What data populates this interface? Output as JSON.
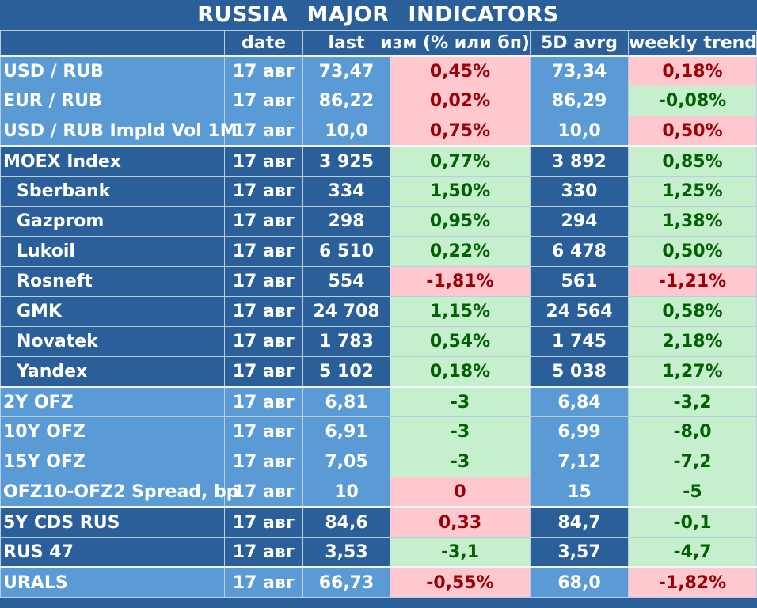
{
  "title": "RUSSIA   MAJOR   INDICATORS",
  "columns": [
    "",
    "date",
    "last",
    "изм (% или бп)",
    "5D avrg",
    "weekly trend"
  ],
  "rows": [
    {
      "name": "USD / RUB",
      "date": "17 авг",
      "last": "73,47",
      "chg": "0,45%",
      "chg_state": "neg",
      "avg": "73,34",
      "trend": "0,18%",
      "trend_state": "neg"
    },
    {
      "name": "EUR / RUB",
      "date": "17 авг",
      "last": "86,22",
      "chg": "0,02%",
      "chg_state": "neg",
      "avg": "86,29",
      "trend": "-0,08%",
      "trend_state": "pos"
    },
    {
      "name": "USD / RUB Impld Vol 1M",
      "date": "17 авг",
      "last": "10,0",
      "chg": "0,75%",
      "chg_state": "neg",
      "avg": "10,0",
      "trend": "0,50%",
      "trend_state": "neg"
    },
    {
      "name": "MOEX Index",
      "date": "17 авг",
      "last": "3 925",
      "chg": "0,77%",
      "chg_state": "pos",
      "avg": "3 892",
      "trend": "0,85%",
      "trend_state": "pos"
    },
    {
      "name": "Sberbank",
      "date": "17 авг",
      "last": "334",
      "chg": "1,50%",
      "chg_state": "pos",
      "avg": "330",
      "trend": "1,25%",
      "trend_state": "pos"
    },
    {
      "name": "Gazprom",
      "date": "17 авг",
      "last": "298",
      "chg": "0,95%",
      "chg_state": "pos",
      "avg": "294",
      "trend": "1,38%",
      "trend_state": "pos"
    },
    {
      "name": "Lukoil",
      "date": "17 авг",
      "last": "6 510",
      "chg": "0,22%",
      "chg_state": "pos",
      "avg": "6 478",
      "trend": "0,50%",
      "trend_state": "pos"
    },
    {
      "name": "Rosneft",
      "date": "17 авг",
      "last": "554",
      "chg": "-1,81%",
      "chg_state": "neg",
      "avg": "561",
      "trend": "-1,21%",
      "trend_state": "neg"
    },
    {
      "name": "GMK",
      "date": "17 авг",
      "last": "24 708",
      "chg": "1,15%",
      "chg_state": "pos",
      "avg": "24 564",
      "trend": "0,58%",
      "trend_state": "pos"
    },
    {
      "name": "Novatek",
      "date": "17 авг",
      "last": "1 783",
      "chg": "0,54%",
      "chg_state": "pos",
      "avg": "1 745",
      "trend": "2,18%",
      "trend_state": "pos"
    },
    {
      "name": "Yandex",
      "date": "17 авг",
      "last": "5 102",
      "chg": "0,18%",
      "chg_state": "pos",
      "avg": "5 038",
      "trend": "1,27%",
      "trend_state": "pos"
    },
    {
      "name": "2Y OFZ",
      "date": "17 авг",
      "last": "6,81",
      "chg": "-3",
      "chg_state": "pos",
      "avg": "6,84",
      "trend": "-3,2",
      "trend_state": "pos"
    },
    {
      "name": "10Y OFZ",
      "date": "17 авг",
      "last": "6,91",
      "chg": "-3",
      "chg_state": "pos",
      "avg": "6,99",
      "trend": "-8,0",
      "trend_state": "pos"
    },
    {
      "name": "15Y OFZ",
      "date": "17 авг",
      "last": "7,05",
      "chg": "-3",
      "chg_state": "pos",
      "avg": "7,12",
      "trend": "-7,2",
      "trend_state": "pos"
    },
    {
      "name": "OFZ10-OFZ2 Spread, bp",
      "date": "17 авг",
      "last": "10",
      "chg": "0",
      "chg_state": "neg",
      "avg": "15",
      "trend": "-5",
      "trend_state": "pos"
    },
    {
      "name": "5Y CDS RUS",
      "date": "17 авг",
      "last": "84,6",
      "chg": "0,33",
      "chg_state": "neg",
      "avg": "84,7",
      "trend": "-0,1",
      "trend_state": "pos"
    },
    {
      "name": "RUS 47",
      "date": "17 авг",
      "last": "3,53",
      "chg": "-3,1",
      "chg_state": "pos",
      "avg": "3,57",
      "trend": "-4,7",
      "trend_state": "pos"
    },
    {
      "name": "URALS",
      "date": "17 авг",
      "last": "66,73",
      "chg": "-0,55%",
      "chg_state": "neg",
      "avg": "68,0",
      "trend": "-1,82%",
      "trend_state": "neg"
    }
  ],
  "colors": {
    "header_bg": "#2a5f9a",
    "light_row": "#5b9bd5",
    "dark_row": "#2a5f9a",
    "positive_bg": "#c6efce",
    "positive_text": "#006100",
    "negative_bg": "#ffc7ce",
    "negative_text": "#9c0006"
  }
}
